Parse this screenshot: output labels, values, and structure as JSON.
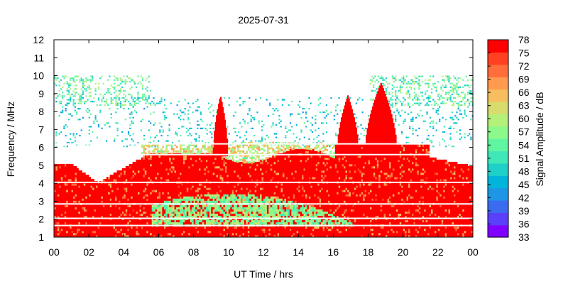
{
  "chart_data": {
    "type": "heatmap",
    "title": "2025-07-31",
    "xlabel": "UT Time / hrs",
    "ylabel": "Frequency / MHz",
    "colorbar_label": "Signal Amplitude / dB",
    "xlim": [
      0,
      24
    ],
    "ylim": [
      1,
      12
    ],
    "x_ticks": [
      "00",
      "02",
      "04",
      "06",
      "08",
      "10",
      "12",
      "14",
      "16",
      "18",
      "20",
      "22",
      "00"
    ],
    "y_ticks": [
      "1",
      "2",
      "3",
      "4",
      "5",
      "6",
      "7",
      "8",
      "9",
      "10",
      "11",
      "12"
    ],
    "colorbar_range": [
      33,
      78
    ],
    "colorbar_ticks": [
      "33",
      "36",
      "39",
      "42",
      "45",
      "48",
      "51",
      "54",
      "57",
      "60",
      "63",
      "66",
      "69",
      "72",
      "75",
      "78"
    ],
    "colorbar_colors": [
      "#8000ff",
      "#5a40f8",
      "#3b6cf0",
      "#1e96e6",
      "#00b4dc",
      "#1fd0c8",
      "#40e8b8",
      "#60f5a0",
      "#8cfa8a",
      "#b4f07a",
      "#d8dc6c",
      "#f6be5e",
      "#ff9a4e",
      "#ff6e3a",
      "#ff4022",
      "#ff0000"
    ],
    "grid": false,
    "legend": "colorbar-right",
    "layers": [
      {
        "name": "high_band_scatter",
        "freq_min": 8.3,
        "freq_max": 9.9,
        "time_ranges": [
          [
            0.0,
            5.5
          ],
          [
            18.0,
            24.0
          ]
        ],
        "value": 54
      },
      {
        "name": "mid_band_scatter",
        "freq_min": 6.0,
        "freq_max": 8.7,
        "time_ranges": [
          [
            0.0,
            24.0
          ]
        ],
        "value": 48
      },
      {
        "name": "absorption_noise",
        "freq_min": 4.0,
        "freq_max": 6.2,
        "time_ranges": [
          [
            5.0,
            16.0
          ]
        ],
        "value": 62
      },
      {
        "name": "main_ionosphere",
        "freq_min": 1.0,
        "freq_max": 5.0,
        "time_ranges": [
          [
            0.0,
            24.0
          ]
        ],
        "value": 78
      },
      {
        "name": "daytime_low_band",
        "freq_min": 1.5,
        "freq_max": 3.4,
        "time_ranges": [
          [
            5.5,
            18.5
          ]
        ],
        "value": 57
      }
    ],
    "spikes": [
      {
        "time_start": 9.1,
        "time_end": 9.9,
        "freq_top": 8.9,
        "value": 78
      },
      {
        "time_start": 16.2,
        "time_end": 17.4,
        "freq_top": 8.9,
        "value": 78
      },
      {
        "time_start": 17.8,
        "time_end": 19.6,
        "freq_top": 9.6,
        "value": 78
      }
    ],
    "white_lines_mhz": [
      1.65,
      2.05,
      2.85,
      4.05,
      5.6,
      6.2
    ]
  }
}
